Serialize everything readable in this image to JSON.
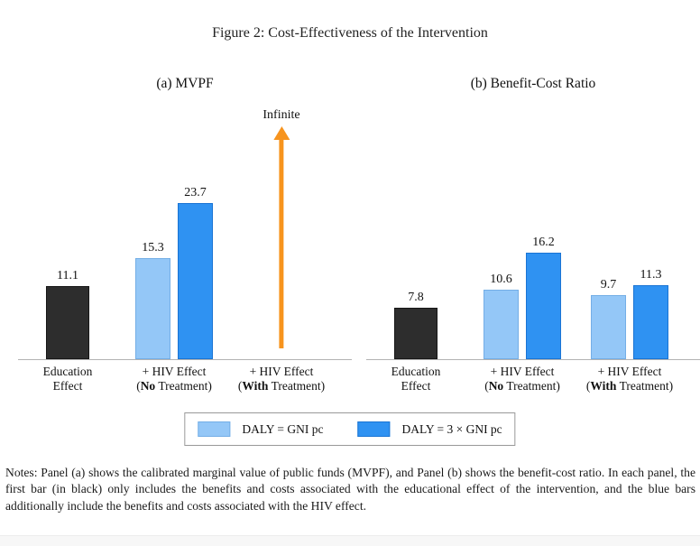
{
  "figure_title": "Figure 2: Cost-Effectiveness of the Intervention",
  "notes": "Notes: Panel (a) shows the calibrated marginal value of public funds (MVPF), and Panel (b) shows the benefit-cost ratio. In each panel, the first bar (in black) only includes the benefits and costs associated with the educational effect of the intervention, and the blue bars additionally include the benefits and costs associated with the HIV effect.",
  "colors": {
    "black_bar": "#2d2d2d",
    "light_blue": "#94c7f7",
    "blue": "#2f92f2",
    "arrow_orange": "#f7941e",
    "axis_gray": "#b3b3b3"
  },
  "x_categories": {
    "c1": {
      "line1": "Education",
      "line2_pre": "",
      "line2_bold": "",
      "line2_post": "Effect"
    },
    "c2": {
      "line1": "+ HIV Effect",
      "line2_pre": "(",
      "line2_bold": "No",
      "line2_post": " Treatment)"
    },
    "c3": {
      "line1": "+ HIV Effect",
      "line2_pre": "(",
      "line2_bold": "With",
      "line2_post": " Treatment)"
    }
  },
  "legend": {
    "items": [
      {
        "label": "DALY = GNI pc",
        "color_key": "light_blue"
      },
      {
        "label": "DALY = 3 × GNI pc",
        "color_key": "blue"
      }
    ]
  },
  "chart_data": {
    "type": "bar",
    "categories": [
      "Education Effect",
      "+ HIV Effect (No Treatment)",
      "+ HIV Effect (With Treatment)"
    ],
    "legend_entries": [
      "DALY = GNI pc",
      "DALY = 3 × GNI pc"
    ],
    "ylim": [
      0,
      26
    ],
    "grid": false,
    "legend_position": "bottom-center",
    "panels": [
      {
        "title": "(a) MVPF",
        "bars": [
          {
            "category": "Education Effect",
            "series": "Education effect only",
            "color": "black",
            "value": 11.1,
            "label": "11.1"
          },
          {
            "category": "+ HIV Effect (No Treatment)",
            "series": "DALY = GNI pc",
            "color": "light_blue",
            "value": 15.3,
            "label": "15.3"
          },
          {
            "category": "+ HIV Effect (No Treatment)",
            "series": "DALY = 3 × GNI pc",
            "color": "blue",
            "value": 23.7,
            "label": "23.7"
          }
        ],
        "annotation": {
          "category": "+ HIV Effect (With Treatment)",
          "text": "Infinite",
          "type": "arrow-up"
        }
      },
      {
        "title": "(b) Benefit-Cost Ratio",
        "bars": [
          {
            "category": "Education Effect",
            "series": "Education effect only",
            "color": "black",
            "value": 7.8,
            "label": "7.8"
          },
          {
            "category": "+ HIV Effect (No Treatment)",
            "series": "DALY = GNI pc",
            "color": "light_blue",
            "value": 10.6,
            "label": "10.6"
          },
          {
            "category": "+ HIV Effect (No Treatment)",
            "series": "DALY = 3 × GNI pc",
            "color": "blue",
            "value": 16.2,
            "label": "16.2"
          },
          {
            "category": "+ HIV Effect (With Treatment)",
            "series": "DALY = GNI pc",
            "color": "light_blue",
            "value": 9.7,
            "label": "9.7"
          },
          {
            "category": "+ HIV Effect (With Treatment)",
            "series": "DALY = 3 × GNI pc",
            "color": "blue",
            "value": 11.3,
            "label": "11.3"
          }
        ]
      }
    ]
  }
}
